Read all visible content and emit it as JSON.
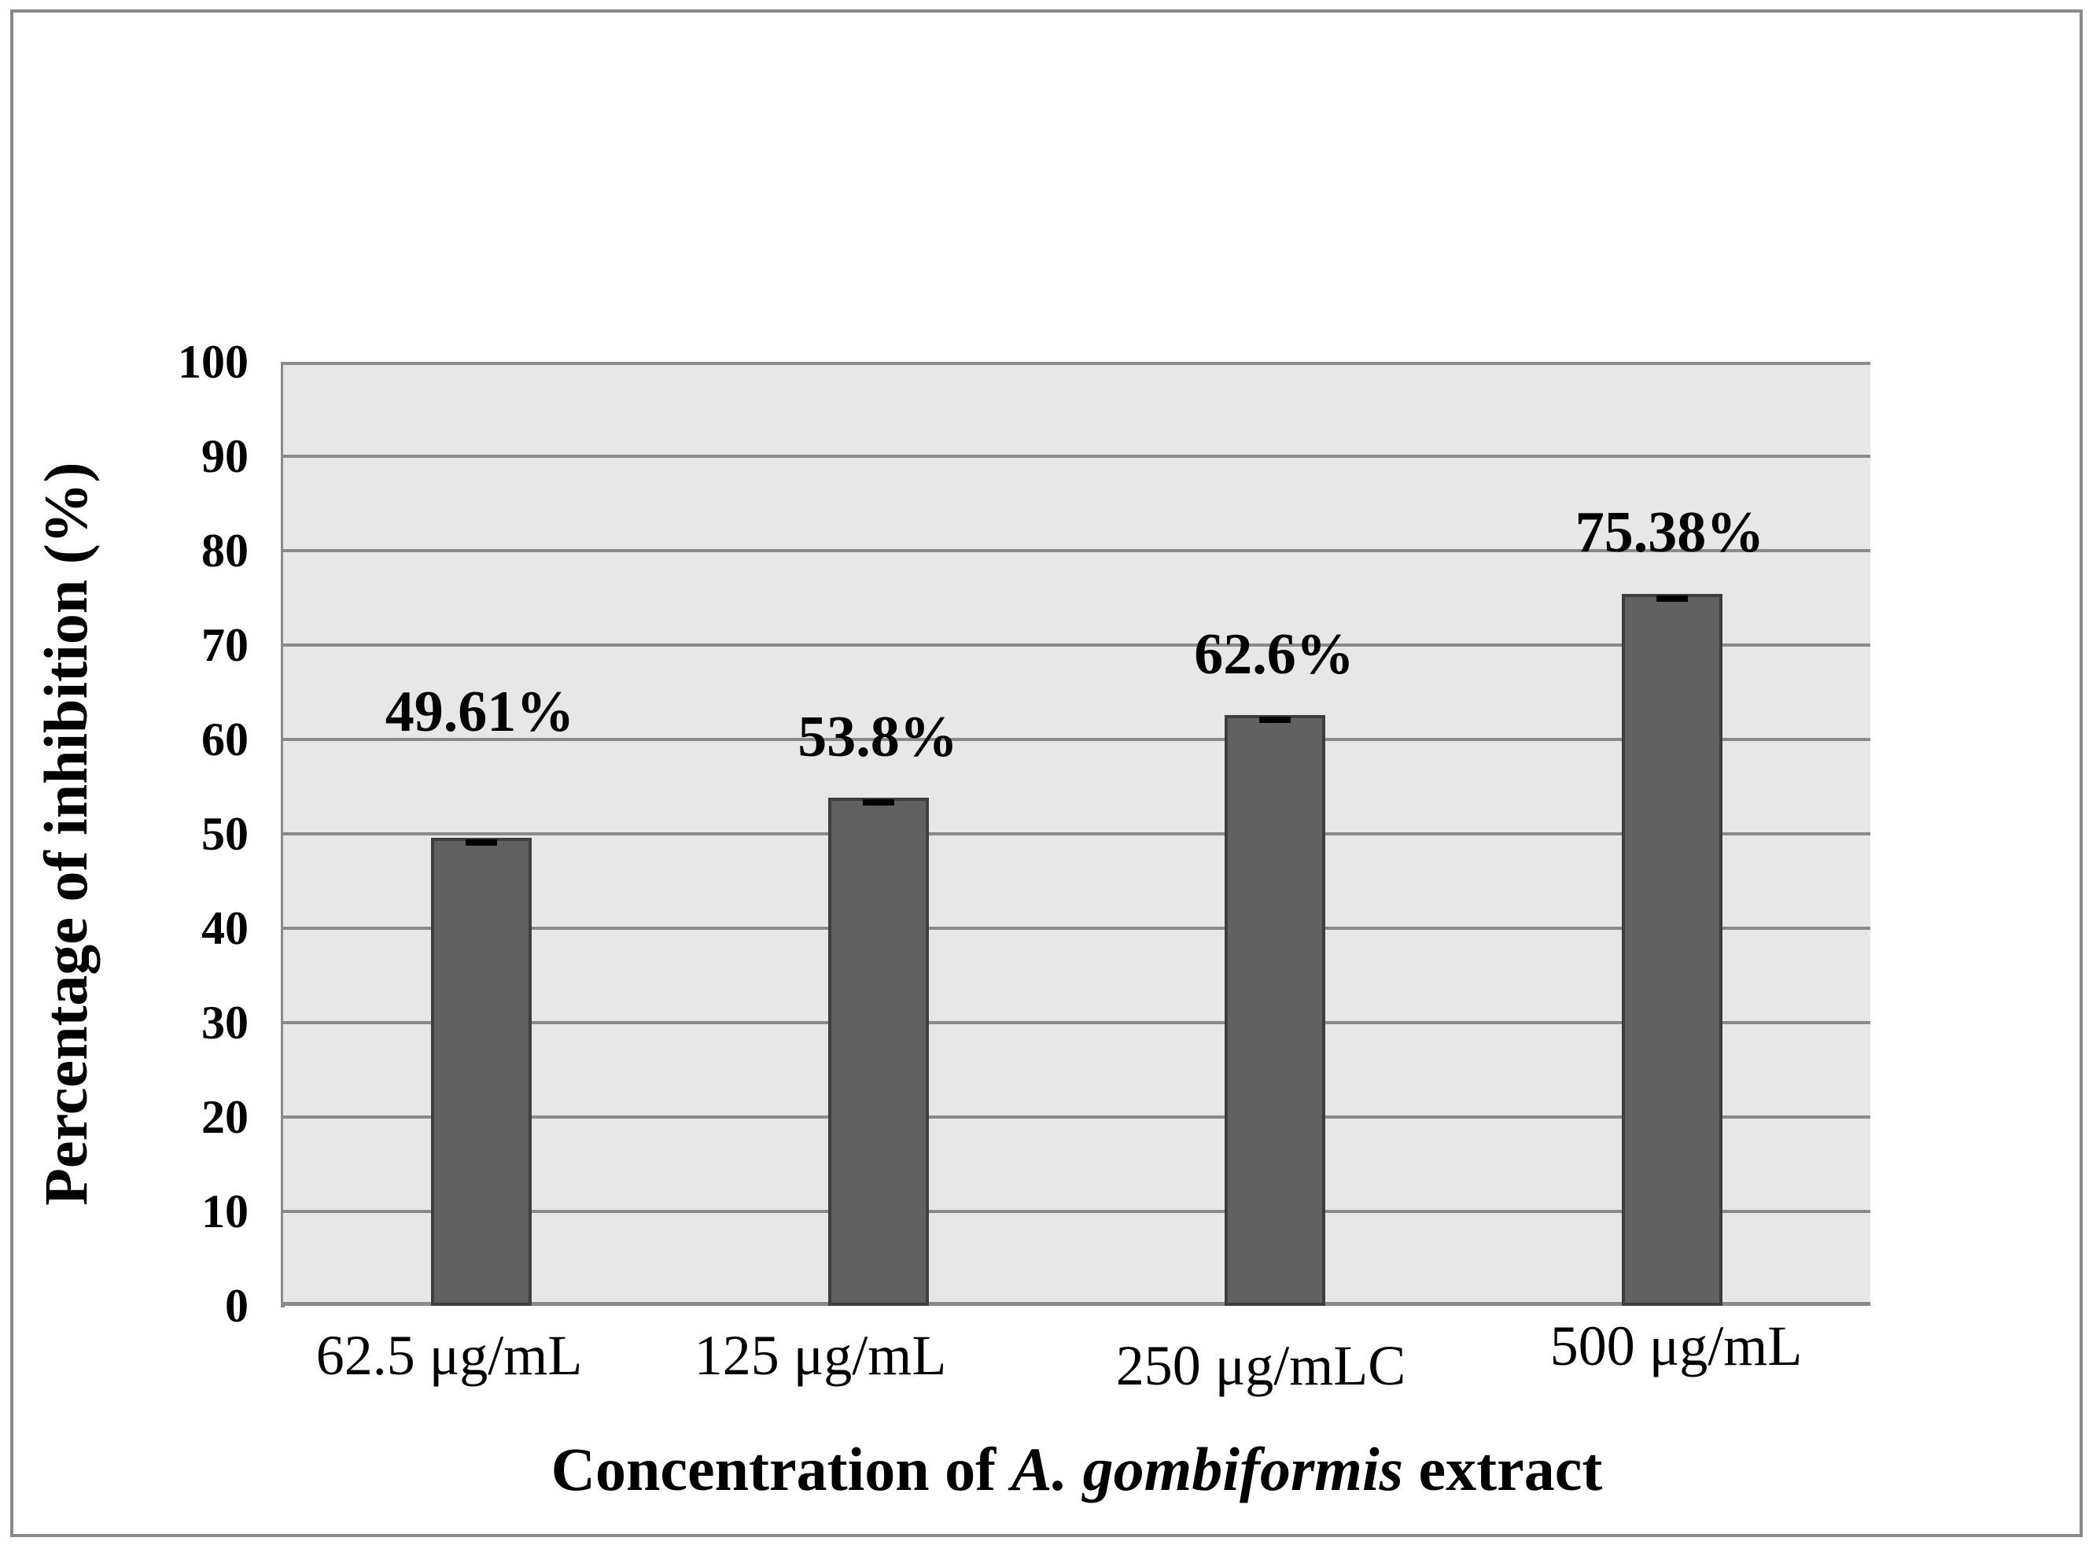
{
  "chart_data": {
    "type": "bar",
    "title": "",
    "categories": [
      "62.5 μg/mL",
      "125 μg/mL",
      "250 μg/mLC",
      "500 μg/mL"
    ],
    "values": [
      49.61,
      53.8,
      62.6,
      75.38
    ],
    "value_labels": [
      "49.61%",
      "53.8%",
      "62.6%",
      "75.38%"
    ],
    "series_name": "Percentage of inhibition",
    "xlabel_prefix": "Concentration of ",
    "xlabel_italic": "A. gombiformis",
    "xlabel_suffix": " extract",
    "ylabel": "Percentage of inhibition (%)",
    "ylim": [
      0,
      100
    ],
    "ytick_step": 10,
    "yticks": [
      "0",
      "10",
      "20",
      "30",
      "40",
      "50",
      "60",
      "70",
      "80",
      "90",
      "100"
    ],
    "grid": "horizontal gridlines every 10",
    "legend": "none",
    "error_bars": "small black caps at each bar top",
    "colors": {
      "bar_fill": "#616161",
      "bar_border": "#3e3e3e",
      "plot_background": "#e7e7e7",
      "gridline": "#8a8a8a",
      "error_cap": "#000000",
      "text": "#000000",
      "frame_border": "#8a8a8a",
      "page_background": "#ffffff"
    }
  }
}
